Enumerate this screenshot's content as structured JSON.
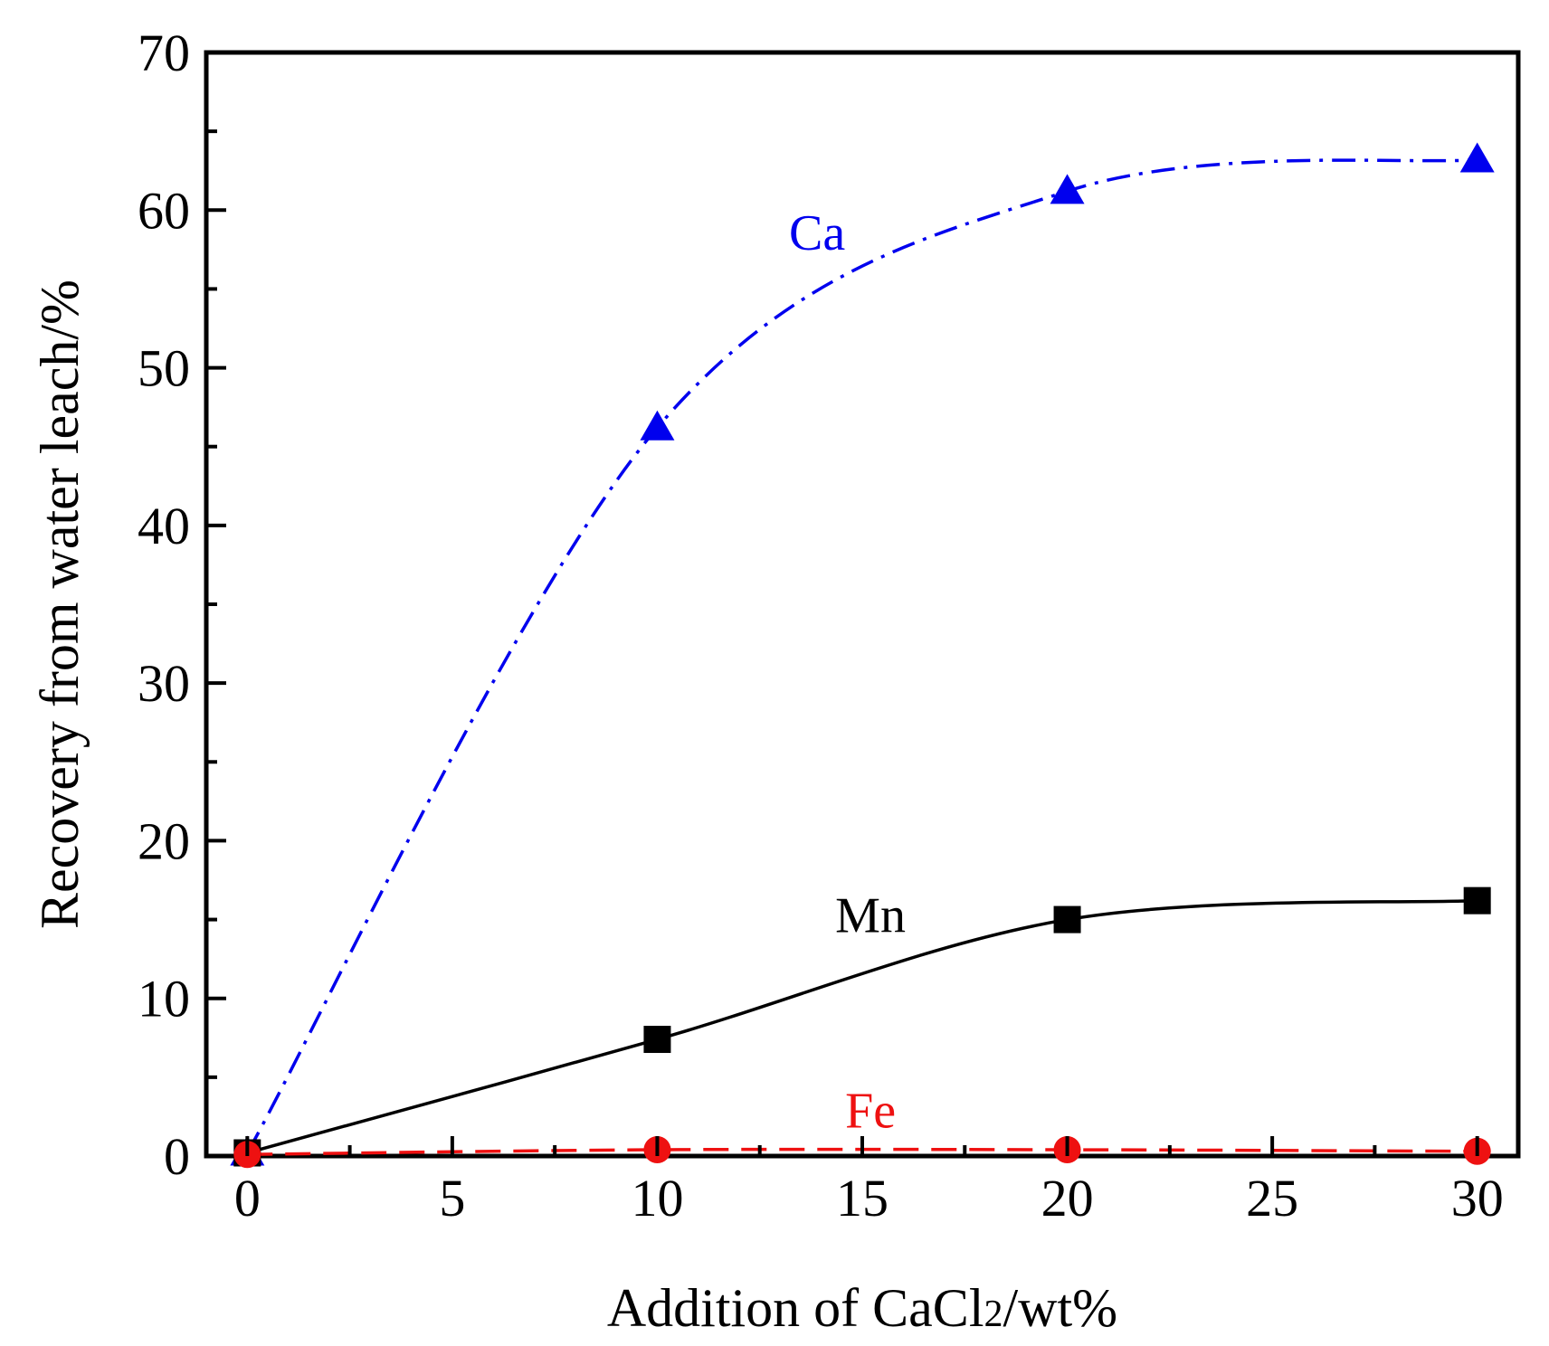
{
  "chart_data": {
    "type": "line",
    "title": "",
    "xlabel_main": "Addition of CaCl",
    "xlabel_sub": "2",
    "xlabel_tail": "/wt%",
    "ylabel": "Recovery from water leach/%",
    "xlim": [
      -1,
      31
    ],
    "ylim": [
      0,
      70
    ],
    "x_ticks": [
      0,
      5,
      10,
      15,
      20,
      25,
      30
    ],
    "x_tick_labels": [
      "0",
      "5",
      "10",
      "15",
      "20",
      "25",
      "30"
    ],
    "y_ticks": [
      0,
      10,
      20,
      30,
      40,
      50,
      60,
      70
    ],
    "y_tick_labels": [
      "0",
      "10",
      "20",
      "30",
      "40",
      "50",
      "60",
      "70"
    ],
    "grid": false,
    "series": [
      {
        "name": "Ca",
        "x": [
          0,
          10,
          20,
          30
        ],
        "values": [
          0.2,
          46.2,
          61.2,
          63.2
        ],
        "color": "#0000ee",
        "marker": "triangle",
        "line_style": "dash-dot"
      },
      {
        "name": "Mn",
        "x": [
          0,
          10,
          20,
          30
        ],
        "values": [
          0.2,
          7.4,
          15.0,
          16.2
        ],
        "color": "#000000",
        "marker": "square",
        "line_style": "solid"
      },
      {
        "name": "Fe",
        "x": [
          0,
          10,
          20,
          30
        ],
        "values": [
          0.1,
          0.4,
          0.4,
          0.3
        ],
        "color": "#ee1111",
        "marker": "circle",
        "line_style": "dashed"
      }
    ],
    "annotations": [
      {
        "text": "Ca",
        "series": "Ca",
        "x": 13.9,
        "y": 57.5
      },
      {
        "text": "Mn",
        "series": "Mn",
        "x": 15.2,
        "y": 14.2
      },
      {
        "text": "Fe",
        "series": "Fe",
        "x": 15.2,
        "y": 1.8
      }
    ]
  }
}
